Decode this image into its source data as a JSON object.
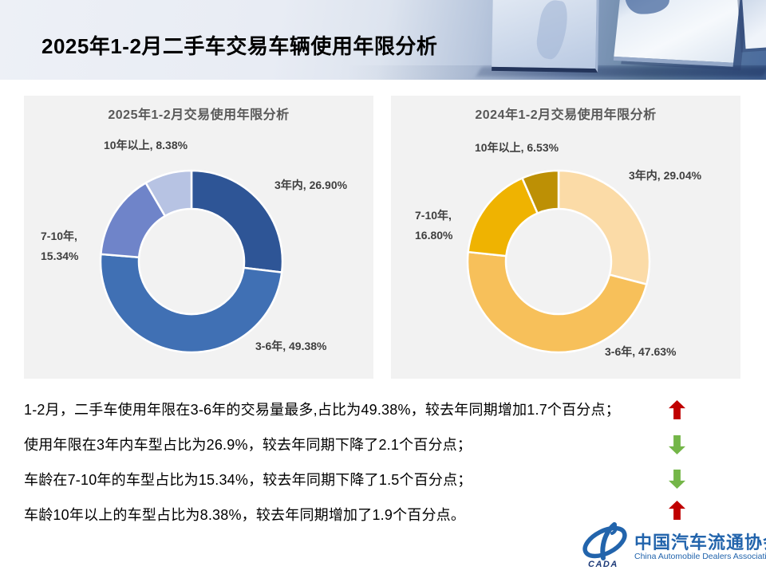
{
  "header": {
    "title": "2025年1-2月二手车交易车辆使用年限分析"
  },
  "chart_data": [
    {
      "type": "pie",
      "donut": true,
      "title": "2025年1-2月交易使用年限分析",
      "categories": [
        "3年内",
        "3-6年",
        "7-10年",
        "10年以上"
      ],
      "values": [
        26.9,
        49.38,
        15.34,
        8.38
      ],
      "colors": [
        "#2e5596",
        "#4070b4",
        "#6f84c9",
        "#b7c3e3"
      ],
      "start_angle_deg": 0,
      "direction": "clockwise",
      "label_texts": {
        "age10plus": "10年以上, 8.38%",
        "age0_3": "3年内, 26.90%",
        "age7_10_line1": "7-10年,",
        "age7_10_line2": "15.34%",
        "age3_6": "3-6年, 49.38%"
      }
    },
    {
      "type": "pie",
      "donut": true,
      "title": "2024年1-2月交易使用年限分析",
      "categories": [
        "3年内",
        "3-6年",
        "7-10年",
        "10年以上"
      ],
      "values": [
        29.04,
        47.63,
        16.8,
        6.53
      ],
      "colors": [
        "#fbdba7",
        "#f7c05a",
        "#efb301",
        "#bd9005"
      ],
      "start_angle_deg": 0,
      "direction": "clockwise",
      "label_texts": {
        "age10plus": "10年以上, 6.53%",
        "age0_3": "3年内, 29.04%",
        "age7_10_line1": "7-10年,",
        "age7_10_line2": "16.80%",
        "age3_6": "3-6年, 47.63%"
      }
    }
  ],
  "summary": {
    "lines": [
      "1-2月，二手车使用年限在3-6年的交易量最多,占比为49.38%，较去年同期增加1.7个百分点；",
      "使用年限在3年内车型占比为26.9%，较去年同期下降了2.1个百分点；",
      "车龄在7-10年的车型占比为15.34%，较去年同期下降了1.5个百分点；",
      "车龄10年以上的车型占比为8.38%，较去年同期增加了1.9个百分点。"
    ],
    "arrows": [
      "up",
      "down",
      "down",
      "up"
    ],
    "up_color": "#c00000",
    "down_color": "#74b648"
  },
  "footer_logo": {
    "org_cn": "中国汽车流通协会",
    "org_en": "China Automobile Dealers Association",
    "mark_text": "CADA",
    "brand_color": "#2264ac"
  }
}
